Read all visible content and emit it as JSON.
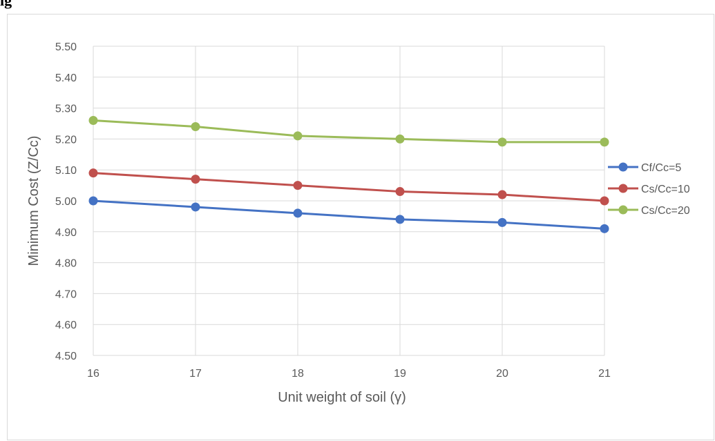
{
  "caption": "ig",
  "chart_data": {
    "type": "line",
    "title": "",
    "xlabel": "Unit weight of soil (γ)",
    "ylabel": "Minimum Cost (Z/Cc)",
    "x": [
      16,
      17,
      18,
      19,
      20,
      21
    ],
    "x_tick_labels": [
      "16",
      "17",
      "18",
      "19",
      "20",
      "21"
    ],
    "y_tick_labels": [
      "4.50",
      "4.60",
      "4.70",
      "4.80",
      "4.90",
      "5.00",
      "5.10",
      "5.20",
      "5.30",
      "5.40",
      "5.50"
    ],
    "ylim": [
      4.5,
      5.5
    ],
    "xlim": [
      16,
      21
    ],
    "grid": true,
    "legend_position": "right",
    "series": [
      {
        "name": "Cf/Cc=5",
        "color": "#4472c4",
        "values": [
          5.0,
          4.98,
          4.96,
          4.94,
          4.93,
          4.91
        ]
      },
      {
        "name": "Cs/Cc=10",
        "color": "#c0504d",
        "values": [
          5.09,
          5.07,
          5.05,
          5.03,
          5.02,
          5.0
        ]
      },
      {
        "name": "Cs/Cc=20",
        "color": "#9bbb59",
        "values": [
          5.26,
          5.24,
          5.21,
          5.2,
          5.19,
          5.19
        ]
      }
    ]
  }
}
